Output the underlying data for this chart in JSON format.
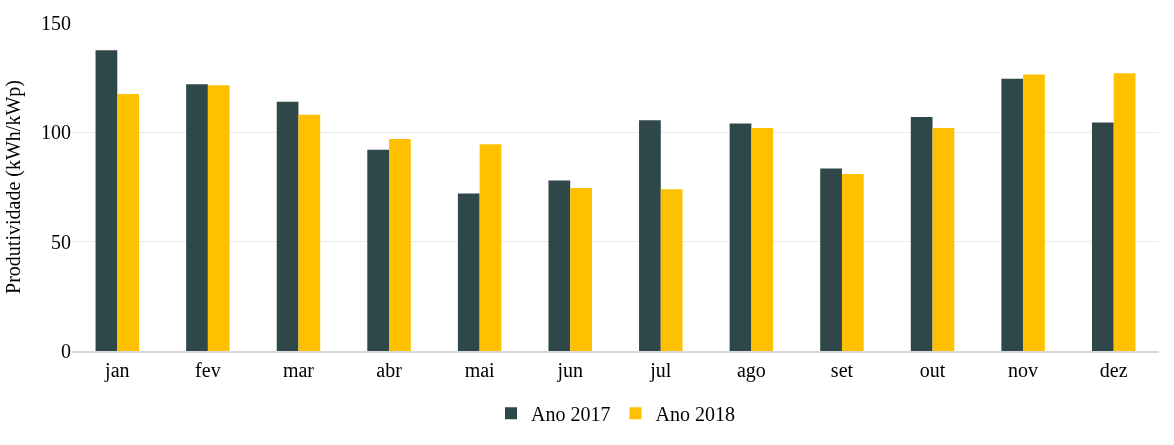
{
  "chart_data": {
    "type": "bar",
    "ylabel": "Produtividade (kWh/kWp)",
    "categories": [
      "jan",
      "fev",
      "mar",
      "abr",
      "mai",
      "jun",
      "jul",
      "ago",
      "set",
      "out",
      "nov",
      "dez"
    ],
    "series": [
      {
        "name": "Ano 2017",
        "color": "#2f4748",
        "values": [
          137.5,
          122,
          114,
          92,
          72,
          78,
          105.5,
          104,
          83.5,
          107,
          124.5,
          104.5
        ]
      },
      {
        "name": "Ano 2018",
        "color": "#ffc000",
        "values": [
          117.5,
          121.5,
          108,
          97,
          94.5,
          74.5,
          74,
          102,
          81,
          102,
          126.5,
          127
        ]
      }
    ],
    "ylim": [
      0,
      150
    ],
    "yticks": [
      0,
      50,
      100,
      150
    ],
    "grid": "y",
    "legend": "bottom"
  }
}
